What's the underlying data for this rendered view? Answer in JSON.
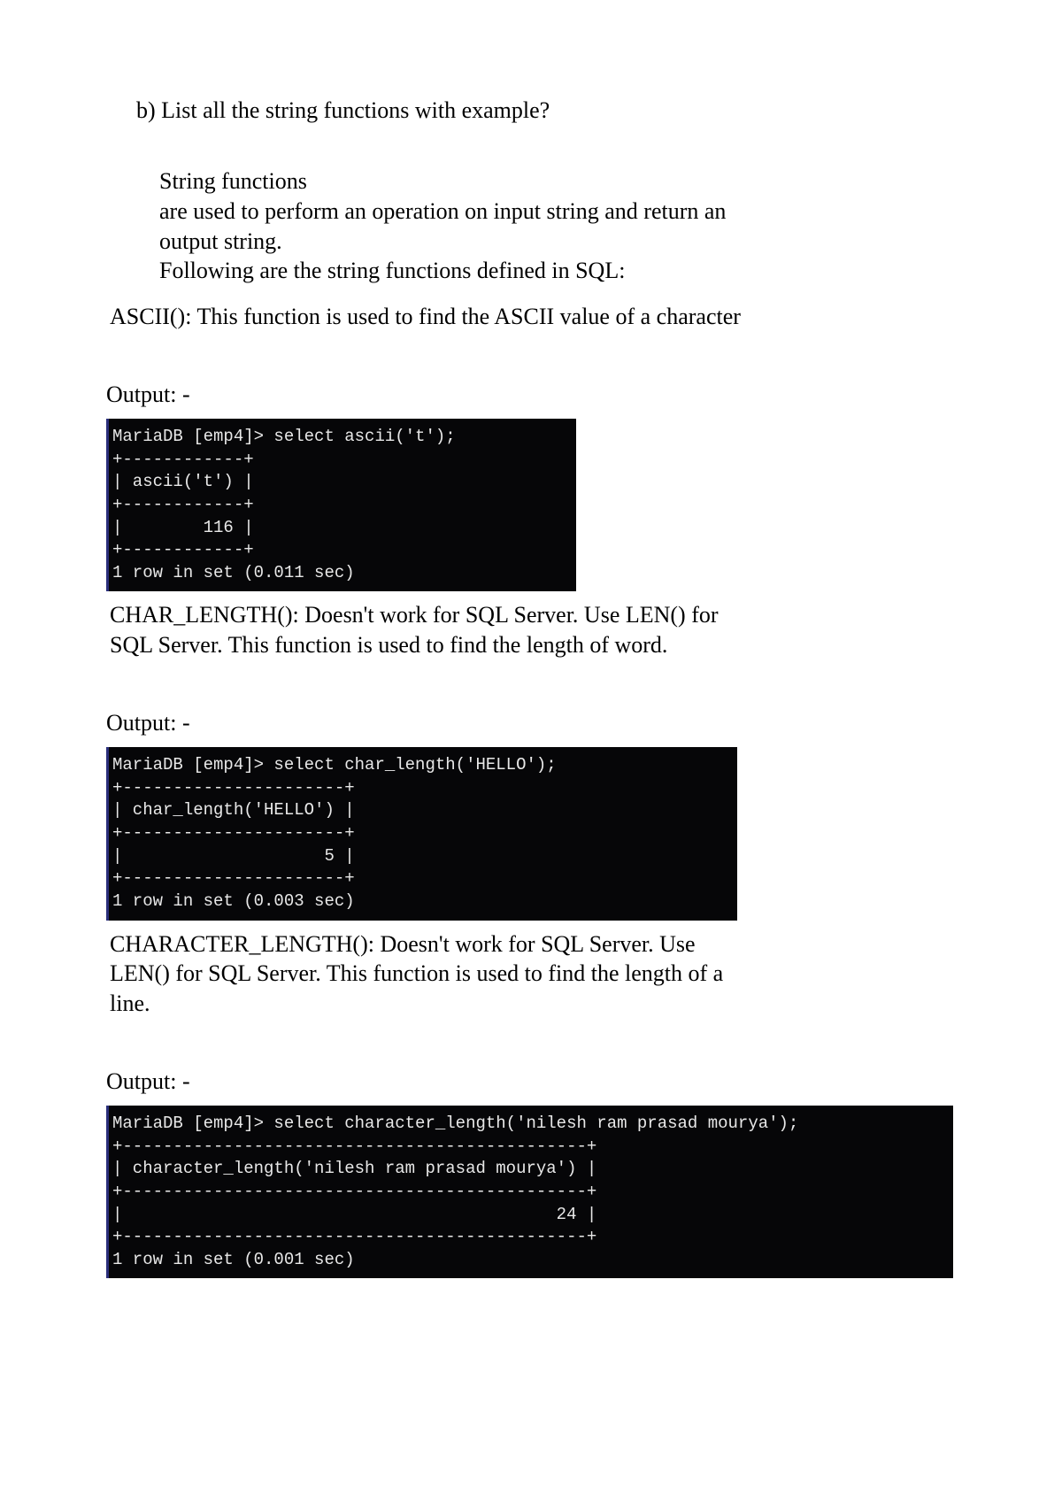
{
  "question": "b) List all the string functions with example?",
  "intro": {
    "title": "String functions",
    "line1": "are used to perform an operation on input string and return an",
    "line2": "output string.",
    "line3": "Following are the string functions defined in SQL:"
  },
  "ascii": {
    "desc": "ASCII(): This function is used to find the ASCII value of a character",
    "output_label": "Output: -",
    "terminal": "MariaDB [emp4]> select ascii('t');\n+------------+\n| ascii('t') |\n+------------+\n|        116 |\n+------------+\n1 row in set (0.011 sec)"
  },
  "char_length": {
    "desc_l1": "CHAR_LENGTH(): Doesn't work for SQL Server. Use LEN() for",
    "desc_l2": "SQL Server. This function is used to find the length of word.",
    "output_label": "Output: -",
    "terminal": "MariaDB [emp4]> select char_length('HELLO');\n+----------------------+\n| char_length('HELLO') |\n+----------------------+\n|                    5 |\n+----------------------+\n1 row in set (0.003 sec)"
  },
  "character_length": {
    "desc_l1": "CHARACTER_LENGTH(): Doesn't work for SQL Server. Use",
    "desc_l2": "LEN() for SQL Server. This function is used to find the length of a",
    "desc_l3": "line.",
    "output_label": "Output: -",
    "terminal": "MariaDB [emp4]> select character_length('nilesh ram prasad mourya');\n+----------------------------------------------+\n| character_length('nilesh ram prasad mourya') |\n+----------------------------------------------+\n|                                           24 |\n+----------------------------------------------+\n1 row in set (0.001 sec)"
  },
  "colors": {
    "terminal_bg": "#060608",
    "terminal_fg": "#e8e8e8",
    "page_bg": "#ffffff",
    "text": "#000000",
    "terminal_accent": "#2a2e7a"
  },
  "typography": {
    "body_font": "Times New Roman",
    "body_size_pt": 20,
    "terminal_font": "Consolas",
    "terminal_size_pt": 14
  }
}
